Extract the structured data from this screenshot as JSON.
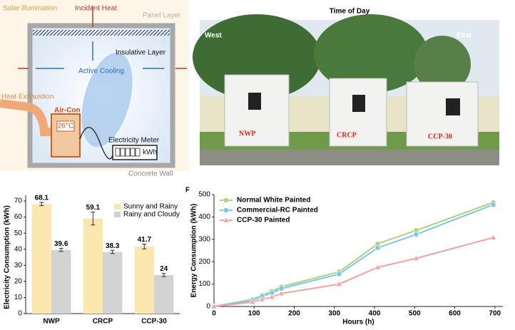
{
  "diagram": {
    "solar": "Solar illumination",
    "incident": "Incident Heat",
    "panel": "Panel Layer",
    "insulative": "Insulative Layer",
    "cooling": "Active Cooling",
    "exhaust": "Heat Exhaustion",
    "aircon": "Air-Con",
    "temp": "26°C",
    "meter": "Electricity Meter",
    "unit": "kWh",
    "wall": "Concrete Wall"
  },
  "photo": {
    "title": "Time of Day",
    "west": "West",
    "east": "East",
    "labels": [
      "NWP",
      "CRCP",
      "CCP-30"
    ]
  },
  "chart_data": [
    {
      "type": "bar",
      "ylabel": "Electricity Consumption (kWh)",
      "categories": [
        "NWP",
        "CRCP",
        "CCP-30"
      ],
      "series": [
        {
          "name": "Sunny and Rainy",
          "color": "#fbe6b0",
          "values": [
            68.1,
            59.1,
            41.7
          ],
          "errors": [
            1,
            4,
            1.5
          ]
        },
        {
          "name": "Rainy and Cloudy",
          "color": "#d2d2d2",
          "values": [
            39.6,
            38.3,
            24
          ],
          "errors": [
            1,
            1,
            1
          ]
        }
      ],
      "ylim": [
        0,
        70
      ],
      "yticks": [
        0,
        10,
        20,
        30,
        40,
        50,
        60,
        70
      ],
      "grid": false,
      "legend": "upper right"
    },
    {
      "type": "line",
      "panel": "F",
      "xlabel": "Hours (h)",
      "ylabel": "Energy Consumption (kWh)",
      "x": [
        0,
        96,
        120,
        144,
        168,
        312,
        408,
        504,
        696
      ],
      "series": [
        {
          "name": "Normal White Painted",
          "color": "#a8d47a",
          "marker": "circle",
          "values": [
            0,
            32,
            50,
            68,
            88,
            155,
            280,
            340,
            465
          ]
        },
        {
          "name": "Commercial-RC Painted",
          "color": "#7cc6e8",
          "marker": "circle",
          "values": [
            0,
            28,
            45,
            60,
            80,
            145,
            262,
            322,
            455
          ]
        },
        {
          "name": "CCP-30 Painted",
          "color": "#f4a0a0",
          "marker": "triangle",
          "values": [
            0,
            20,
            32,
            42,
            58,
            100,
            175,
            215,
            308
          ]
        }
      ],
      "xlim": [
        0,
        720
      ],
      "xticks": [
        0,
        100,
        200,
        300,
        400,
        500,
        600,
        700
      ],
      "ylim": [
        0,
        500
      ],
      "yticks": [
        0,
        100,
        200,
        300,
        400,
        500
      ],
      "grid": false,
      "legend": "upper left"
    }
  ]
}
